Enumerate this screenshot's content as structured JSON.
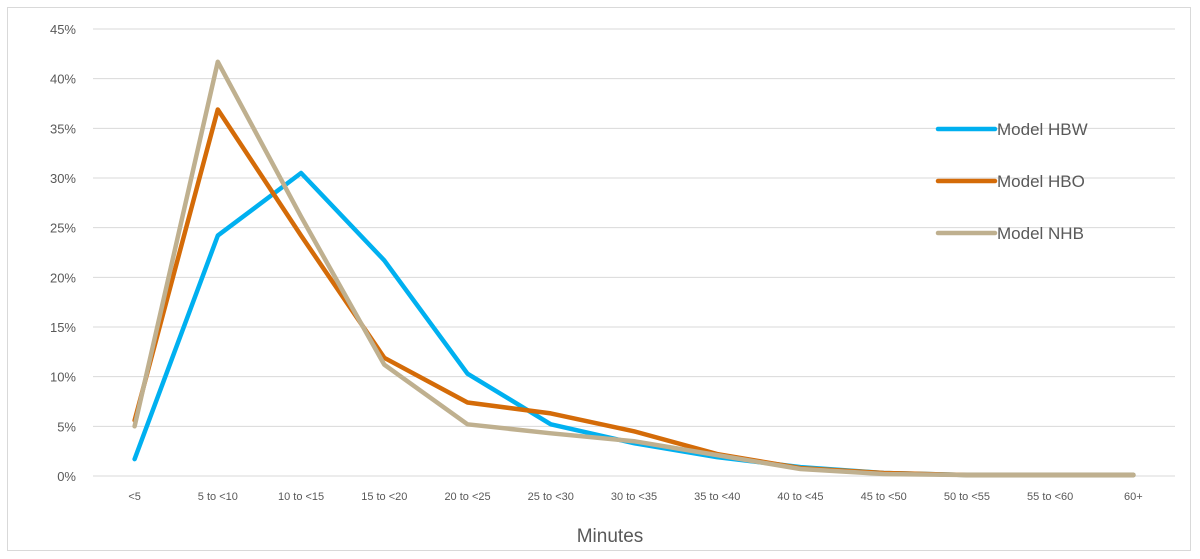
{
  "chart_data": {
    "type": "line",
    "title": "",
    "xlabel": "Minutes",
    "ylabel": "",
    "categories": [
      "<5",
      "5 to <10",
      "10 to <15",
      "15 to <20",
      "20 to <25",
      "25 to <30",
      "30 to <35",
      "35 to <40",
      "40 to <45",
      "45 to <50",
      "50 to <55",
      "55 to <60",
      "60+"
    ],
    "ylim": [
      0,
      45
    ],
    "yticks": [
      "0%",
      "5%",
      "10%",
      "15%",
      "20%",
      "25%",
      "30%",
      "35%",
      "40%",
      "45%"
    ],
    "grid": "horizontal",
    "legend_position": "right",
    "series": [
      {
        "name": "Model HBW",
        "color": "#00b0f0",
        "values": [
          1.7,
          24.2,
          30.5,
          21.7,
          10.3,
          5.2,
          3.3,
          1.9,
          0.9,
          0.3,
          0.1,
          0.1,
          0.1
        ]
      },
      {
        "name": "Model HBO",
        "color": "#d46b08",
        "values": [
          5.6,
          36.9,
          24.2,
          11.9,
          7.4,
          6.3,
          4.5,
          2.2,
          0.8,
          0.3,
          0.1,
          0.1,
          0.1
        ]
      },
      {
        "name": "Model NHB",
        "color": "#bfb08f",
        "values": [
          5.0,
          41.7,
          26.1,
          11.2,
          5.2,
          4.3,
          3.5,
          2.1,
          0.7,
          0.2,
          0.1,
          0.1,
          0.1
        ]
      }
    ]
  }
}
